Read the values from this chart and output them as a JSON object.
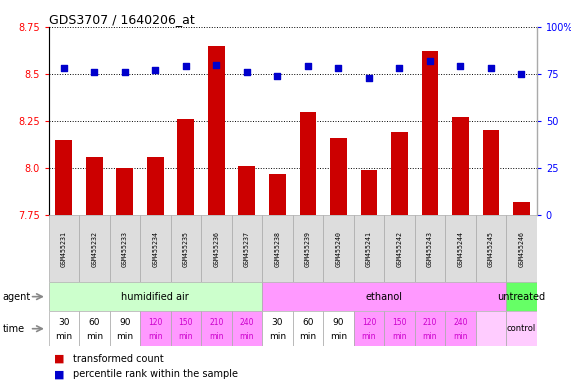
{
  "title": "GDS3707 / 1640206_at",
  "samples": [
    "GSM455231",
    "GSM455232",
    "GSM455233",
    "GSM455234",
    "GSM455235",
    "GSM455236",
    "GSM455237",
    "GSM455238",
    "GSM455239",
    "GSM455240",
    "GSM455241",
    "GSM455242",
    "GSM455243",
    "GSM455244",
    "GSM455245",
    "GSM455246"
  ],
  "transformed_count": [
    8.15,
    8.06,
    8.0,
    8.06,
    8.26,
    8.65,
    8.01,
    7.97,
    8.3,
    8.16,
    7.99,
    8.19,
    8.62,
    8.27,
    8.2,
    7.82
  ],
  "percentile_rank": [
    78,
    76,
    76,
    77,
    79,
    80,
    76,
    74,
    79,
    78,
    73,
    78,
    82,
    79,
    78,
    75
  ],
  "ylim_left": [
    7.75,
    8.75
  ],
  "ylim_right": [
    0,
    100
  ],
  "yticks_left": [
    7.75,
    8.0,
    8.25,
    8.5,
    8.75
  ],
  "yticks_right": [
    0,
    25,
    50,
    75,
    100
  ],
  "bar_color": "#cc0000",
  "dot_color": "#0000cc",
  "dot_size": 25,
  "agent_groups": [
    {
      "label": "humidified air",
      "start": 0,
      "end": 7,
      "color": "#ccffcc"
    },
    {
      "label": "ethanol",
      "start": 7,
      "end": 15,
      "color": "#ff99ff"
    },
    {
      "label": "untreated",
      "start": 15,
      "end": 16,
      "color": "#66ff66"
    }
  ],
  "time_labels_top": [
    "30",
    "60",
    "90",
    "120",
    "150",
    "210",
    "240",
    "30",
    "60",
    "90",
    "120",
    "150",
    "210",
    "240",
    "",
    ""
  ],
  "time_labels_bot": [
    "min",
    "min",
    "min",
    "min",
    "min",
    "min",
    "min",
    "min",
    "min",
    "min",
    "min",
    "min",
    "min",
    "min",
    "",
    ""
  ],
  "time_colors": [
    "#ffffff",
    "#ffffff",
    "#ffffff",
    "#ff99ff",
    "#ff99ff",
    "#ff99ff",
    "#ff99ff",
    "#ffffff",
    "#ffffff",
    "#ffffff",
    "#ff99ff",
    "#ff99ff",
    "#ff99ff",
    "#ff99ff",
    "#ffccff",
    "#ffccff"
  ],
  "time_text_colors": [
    "#000000",
    "#000000",
    "#000000",
    "#cc00cc",
    "#cc00cc",
    "#cc00cc",
    "#cc00cc",
    "#000000",
    "#000000",
    "#000000",
    "#cc00cc",
    "#cc00cc",
    "#cc00cc",
    "#cc00cc",
    "#000000",
    "#000000"
  ],
  "gsm_bg_color": "#dddddd",
  "gsm_border_color": "#aaaaaa",
  "legend_bar_label": "transformed count",
  "legend_dot_label": "percentile rank within the sample"
}
